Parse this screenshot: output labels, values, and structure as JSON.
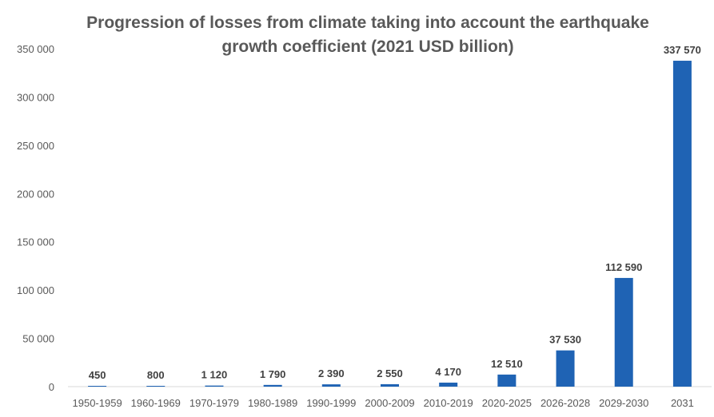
{
  "chart_data": {
    "type": "bar",
    "title_lines": [
      "Progression of losses from climate taking into account the earthquake",
      "growth coefficient (2021 USD billion)"
    ],
    "categories": [
      "1950-1959",
      "1960-1969",
      "1970-1979",
      "1980-1989",
      "1990-1999",
      "2000-2009",
      "2010-2019",
      "2020-2025",
      "2026-2028",
      "2029-2030",
      "2031"
    ],
    "values": [
      450,
      800,
      1120,
      1790,
      2390,
      2550,
      4170,
      12510,
      37530,
      112590,
      337570
    ],
    "data_labels": [
      "450",
      "800",
      "1 120",
      "1 790",
      "2 390",
      "2 550",
      "4 170",
      "12 510",
      "37 530",
      "112 590",
      "337 570"
    ],
    "y_ticks": [
      0,
      50000,
      100000,
      150000,
      200000,
      250000,
      300000,
      350000
    ],
    "y_tick_labels": [
      "0",
      "50 000",
      "100 000",
      "150 000",
      "200 000",
      "250 000",
      "300 000",
      "350 000"
    ],
    "ylim": [
      0,
      350000
    ],
    "grid": false,
    "legend": "none",
    "bar_color": "#1f63b4"
  }
}
